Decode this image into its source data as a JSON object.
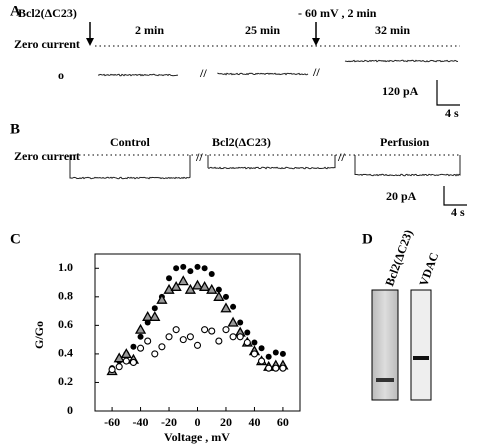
{
  "panel_a": {
    "label": "A",
    "arrow_1": "Bcl2(ΔC23)",
    "arrow_2": "- 60 mV , 2 min",
    "times": [
      "2 min",
      "25 min",
      "32 min"
    ],
    "zero_label": "Zero current",
    "open_label": "o",
    "scale_y": "120 pA",
    "scale_x": "4 s"
  },
  "panel_b": {
    "label": "B",
    "zero_label": "Zero current",
    "conditions": [
      "Control",
      "Bcl2(ΔC23)",
      "Perfusion"
    ],
    "scale_y": "20 pA",
    "scale_x": "4 s"
  },
  "chart_data": {
    "type": "scatter",
    "panel_label": "C",
    "x_label": "Voltage , mV",
    "y_label": "G/Go",
    "x": [
      -60,
      -55,
      -50,
      -45,
      -40,
      -35,
      -30,
      -25,
      -20,
      -15,
      -10,
      -5,
      0,
      5,
      10,
      15,
      20,
      25,
      30,
      35,
      40,
      45,
      50,
      55,
      60
    ],
    "series": [
      {
        "marker": "filled-circle",
        "color": "#000000",
        "values": [
          0.3,
          0.35,
          0.4,
          0.45,
          0.52,
          0.62,
          0.72,
          0.8,
          0.93,
          1.0,
          1.01,
          0.98,
          1.01,
          1.0,
          0.96,
          0.85,
          0.8,
          0.73,
          0.62,
          0.55,
          0.48,
          0.44,
          0.38,
          0.41,
          0.4
        ]
      },
      {
        "marker": "triangle",
        "color": "#000000",
        "values": [
          0.28,
          0.37,
          0.4,
          0.36,
          0.57,
          0.66,
          0.66,
          0.78,
          0.85,
          0.87,
          0.91,
          0.85,
          0.88,
          0.87,
          0.85,
          0.8,
          0.72,
          0.62,
          0.55,
          0.48,
          0.42,
          0.35,
          0.31,
          0.32,
          0.32
        ]
      },
      {
        "marker": "open-circle",
        "color": "#000000",
        "values": [
          0.29,
          0.31,
          0.35,
          0.34,
          0.44,
          0.49,
          0.4,
          0.45,
          0.52,
          0.57,
          0.5,
          0.52,
          0.46,
          0.57,
          0.56,
          0.49,
          0.57,
          0.52,
          0.52,
          0.48,
          0.4,
          0.35,
          0.3,
          0.3,
          0.3
        ]
      }
    ],
    "xlim": [
      -72,
      72
    ],
    "ylim": [
      0,
      1.1
    ],
    "xticks": [
      -60,
      -40,
      -20,
      0,
      20,
      40,
      60
    ],
    "yticks": [
      0,
      {
        "value": 0.2,
        "label": "0.2"
      },
      {
        "value": 0.4,
        "label": "0.4"
      },
      {
        "value": 0.6,
        "label": "0.6"
      },
      {
        "value": 0.8,
        "label": "0.8"
      },
      {
        "value": 1,
        "label": "1.0"
      }
    ]
  },
  "panel_d": {
    "label": "D",
    "lanes": [
      "Bcl2(ΔC23)",
      "VDAC"
    ]
  }
}
